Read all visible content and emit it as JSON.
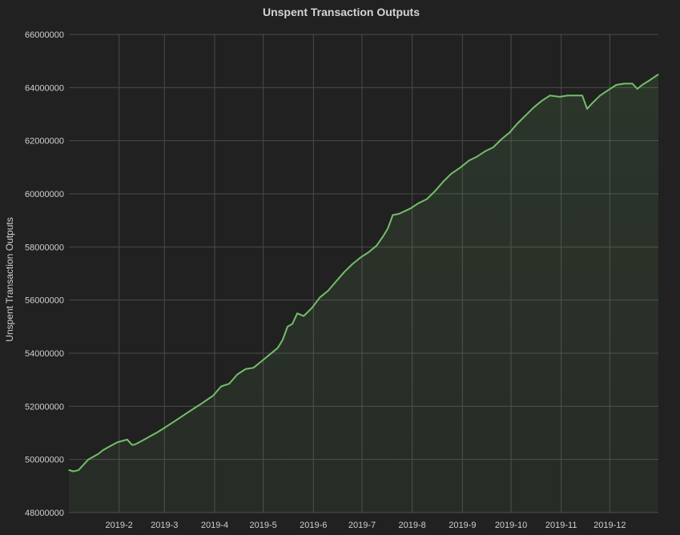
{
  "chart_data": {
    "type": "area",
    "title": "Unspent Transaction Outputs",
    "xlabel": "",
    "ylabel": "Unspent Transaction Outputs",
    "x_type": "date",
    "xlim": [
      "2019-01-01",
      "2019-12-31"
    ],
    "ylim": [
      48000000,
      66000000
    ],
    "y_ticks": [
      48000000,
      50000000,
      52000000,
      54000000,
      56000000,
      58000000,
      60000000,
      62000000,
      64000000,
      66000000
    ],
    "y_tick_labels": [
      "48000000",
      "50000000",
      "52000000",
      "54000000",
      "56000000",
      "58000000",
      "60000000",
      "62000000",
      "64000000",
      "66000000"
    ],
    "x_ticks": [
      "2019-02-01",
      "2019-03-01",
      "2019-04-01",
      "2019-05-01",
      "2019-06-01",
      "2019-07-01",
      "2019-08-01",
      "2019-09-01",
      "2019-10-01",
      "2019-11-01",
      "2019-12-01"
    ],
    "x_tick_labels": [
      "2019-2",
      "2019-3",
      "2019-4",
      "2019-5",
      "2019-6",
      "2019-7",
      "2019-8",
      "2019-9",
      "2019-10",
      "2019-11",
      "2019-12"
    ],
    "grid": true,
    "colors": {
      "background": "#212121",
      "grid": "#4a4a4a",
      "line": "#73bf69",
      "fill": "#73bf69"
    },
    "series": [
      {
        "x": [
          "2019-01-01",
          "2019-01-04",
          "2019-01-07",
          "2019-01-10",
          "2019-01-13",
          "2019-01-16",
          "2019-01-19",
          "2019-01-22",
          "2019-01-25",
          "2019-01-28",
          "2019-01-31",
          "2019-02-03",
          "2019-02-06",
          "2019-02-09",
          "2019-02-10",
          "2019-02-12",
          "2019-02-15",
          "2019-02-18",
          "2019-02-21",
          "2019-02-24",
          "2019-02-28",
          "2019-03-05",
          "2019-03-10",
          "2019-03-15",
          "2019-03-20",
          "2019-03-25",
          "2019-03-31",
          "2019-04-05",
          "2019-04-10",
          "2019-04-15",
          "2019-04-20",
          "2019-04-25",
          "2019-04-30",
          "2019-05-05",
          "2019-05-10",
          "2019-05-13",
          "2019-05-16",
          "2019-05-19",
          "2019-05-22",
          "2019-05-26",
          "2019-05-31",
          "2019-06-05",
          "2019-06-10",
          "2019-06-15",
          "2019-06-20",
          "2019-06-25",
          "2019-06-30",
          "2019-07-05",
          "2019-07-10",
          "2019-07-14",
          "2019-07-17",
          "2019-07-20",
          "2019-07-24",
          "2019-07-31",
          "2019-08-05",
          "2019-08-10",
          "2019-08-15",
          "2019-08-20",
          "2019-08-25",
          "2019-08-31",
          "2019-09-05",
          "2019-09-10",
          "2019-09-15",
          "2019-09-20",
          "2019-09-25",
          "2019-09-30",
          "2019-10-05",
          "2019-10-10",
          "2019-10-15",
          "2019-10-20",
          "2019-10-25",
          "2019-10-31",
          "2019-11-05",
          "2019-11-10",
          "2019-11-14",
          "2019-11-17",
          "2019-11-20",
          "2019-11-25",
          "2019-11-30",
          "2019-12-05",
          "2019-12-10",
          "2019-12-15",
          "2019-12-18",
          "2019-12-21",
          "2019-12-25",
          "2019-12-31"
        ],
        "values": [
          49600000,
          49550000,
          49600000,
          49800000,
          50000000,
          50100000,
          50200000,
          50350000,
          50450000,
          50550000,
          50650000,
          50700000,
          50750000,
          50550000,
          50550000,
          50600000,
          50700000,
          50800000,
          50900000,
          51000000,
          51150000,
          51350000,
          51550000,
          51750000,
          51950000,
          52150000,
          52400000,
          52750000,
          52850000,
          53200000,
          53400000,
          53450000,
          53700000,
          53950000,
          54200000,
          54500000,
          55000000,
          55100000,
          55500000,
          55400000,
          55700000,
          56100000,
          56350000,
          56700000,
          57050000,
          57350000,
          57600000,
          57800000,
          58050000,
          58400000,
          58700000,
          59200000,
          59250000,
          59450000,
          59650000,
          59800000,
          60100000,
          60450000,
          60750000,
          61000000,
          61250000,
          61400000,
          61600000,
          61750000,
          62050000,
          62300000,
          62650000,
          62950000,
          63250000,
          63500000,
          63700000,
          63650000,
          63700000,
          63700000,
          63700000,
          63200000,
          63400000,
          63700000,
          63900000,
          64100000,
          64150000,
          64150000,
          63950000,
          64100000,
          64250000,
          64500000
        ]
      }
    ]
  }
}
